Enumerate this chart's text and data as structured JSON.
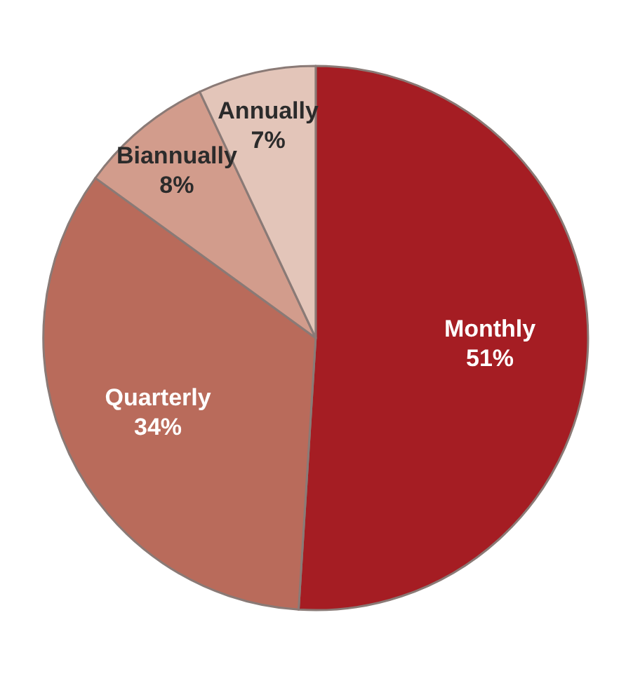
{
  "chart_data": {
    "type": "pie",
    "categories": [
      "Monthly",
      "Quarterly",
      "Biannually",
      "Annually"
    ],
    "values": [
      51,
      34,
      8,
      7
    ],
    "value_labels": [
      "51%",
      "34%",
      "8%",
      "7%"
    ],
    "colors": [
      "#a51d23",
      "#b96b5b",
      "#d29c8c",
      "#e3c5b9"
    ]
  }
}
